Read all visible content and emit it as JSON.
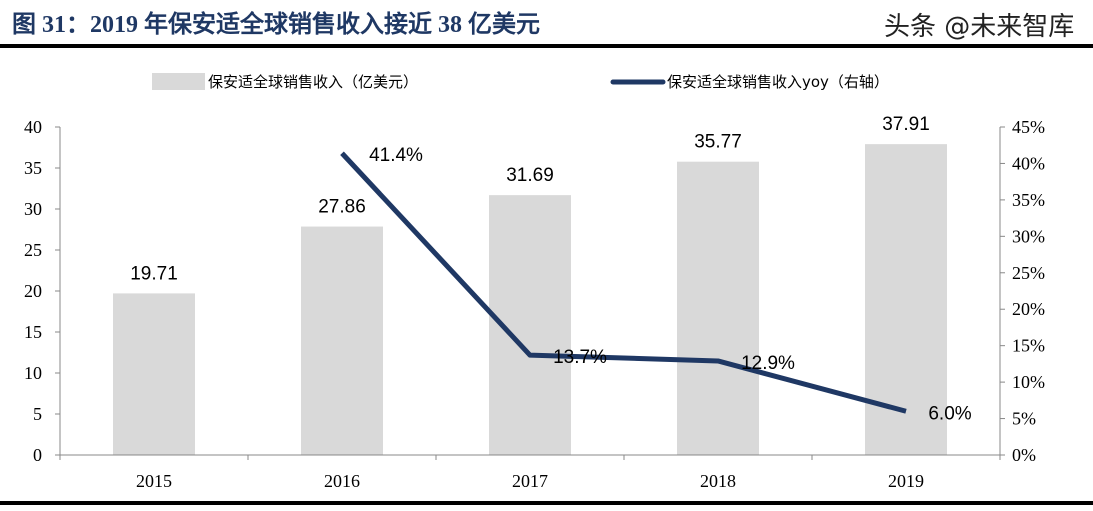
{
  "title": "图 31：2019 年保安适全球销售收入接近 38 亿美元",
  "watermark": "头条 @未来智库",
  "chart_data": {
    "type": "bar+line",
    "categories": [
      "2015",
      "2016",
      "2017",
      "2018",
      "2019"
    ],
    "series": [
      {
        "name": "保安适全球销售收入（亿美元）",
        "type": "bar",
        "axis": "left",
        "color": "#d9d9d9",
        "values": [
          19.71,
          27.86,
          31.69,
          35.77,
          37.91
        ],
        "labels": [
          "19.71",
          "27.86",
          "31.69",
          "35.77",
          "37.91"
        ]
      },
      {
        "name": "保安适全球销售收入yoy（右轴）",
        "type": "line",
        "axis": "right",
        "color": "#1f3864",
        "values": [
          null,
          41.4,
          13.7,
          12.9,
          6.0
        ],
        "labels": [
          "",
          "41.4%",
          "13.7%",
          "12.9%",
          "6.0%"
        ]
      }
    ],
    "y_left": {
      "range": [
        0,
        40
      ],
      "ticks": [
        "0",
        "5",
        "10",
        "15",
        "20",
        "25",
        "30",
        "35",
        "40"
      ]
    },
    "y_right": {
      "range": [
        0,
        45
      ],
      "ticks": [
        "0%",
        "5%",
        "10%",
        "15%",
        "20%",
        "25%",
        "30%",
        "35%",
        "40%",
        "45%"
      ]
    },
    "grid": false,
    "legend": "top"
  }
}
